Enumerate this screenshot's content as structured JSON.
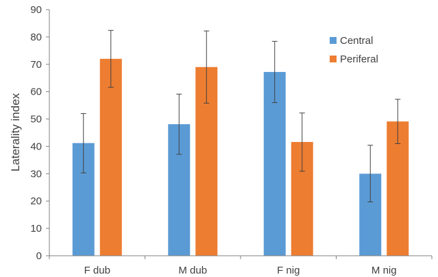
{
  "chart_data": {
    "type": "bar",
    "title": "",
    "xlabel": "",
    "ylabel": "Laterality index",
    "ylim": [
      0,
      90
    ],
    "yticks": [
      0,
      10,
      20,
      30,
      40,
      50,
      60,
      70,
      80,
      90
    ],
    "grid": false,
    "legend": "top-right",
    "error_bars": true,
    "categories": [
      "F dub",
      "M dub",
      "F nig",
      "M nig"
    ],
    "series": [
      {
        "name": "Central",
        "color": "#5b9bd5",
        "values": [
          41.2,
          48.1,
          67.2,
          30.0
        ],
        "error_low": [
          30.3,
          37.1,
          56.0,
          19.7
        ],
        "error_high": [
          52.0,
          59.1,
          78.4,
          40.4
        ]
      },
      {
        "name": "Periferal",
        "color": "#ed7d31",
        "values": [
          72.0,
          69.0,
          41.6,
          49.1
        ],
        "error_low": [
          61.6,
          55.8,
          30.9,
          41.0
        ],
        "error_high": [
          82.4,
          82.2,
          52.2,
          57.2
        ]
      }
    ]
  }
}
